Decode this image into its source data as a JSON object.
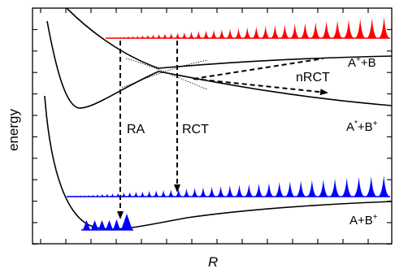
{
  "axes": {
    "xlabel": "R",
    "ylabel": "energy"
  },
  "curves": {
    "upper": {
      "label_main": "A",
      "label_sup": "+",
      "label_rest": "+B"
    },
    "middle": {
      "label_main": "A",
      "label_sup1": "*",
      "label_mid": "+B",
      "label_sup2": "+"
    },
    "lower": {
      "label_main": "A+B",
      "label_sup": "+"
    }
  },
  "transitions": {
    "ra": "RA",
    "rct": "RCT",
    "nrct": "nRCT"
  },
  "colors": {
    "line": "#000000",
    "red_packet": "#ff0000",
    "blue_packet": "#0000ff"
  }
}
